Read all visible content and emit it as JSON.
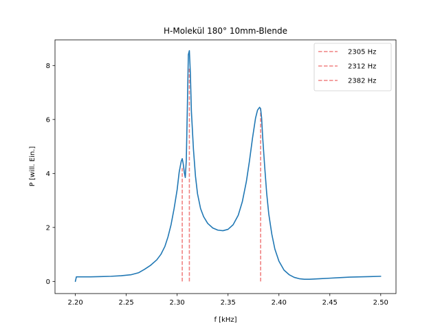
{
  "chart_data": {
    "type": "line",
    "title": "H-Molekül 180° 10mm-Blende",
    "xlabel": "f [kHz]",
    "ylabel": "P [will. Ein.]",
    "xlim": [
      2.18,
      2.515
    ],
    "ylim": [
      -0.45,
      8.95
    ],
    "xticks": [
      2.2,
      2.25,
      2.3,
      2.35,
      2.4,
      2.45,
      2.5
    ],
    "xtick_labels": [
      "2.20",
      "2.25",
      "2.30",
      "2.35",
      "2.40",
      "2.45",
      "2.50"
    ],
    "yticks": [
      0,
      2,
      4,
      6,
      8
    ],
    "ytick_labels": [
      "0",
      "2",
      "4",
      "6",
      "8"
    ],
    "grid": false,
    "legend_position": "top-right",
    "series": [
      {
        "color": "#1f77b4",
        "x": [
          2.2,
          2.201,
          2.205,
          2.215,
          2.225,
          2.235,
          2.245,
          2.255,
          2.262,
          2.268,
          2.274,
          2.28,
          2.284,
          2.288,
          2.291,
          2.294,
          2.297,
          2.3,
          2.302,
          2.304,
          2.305,
          2.306,
          2.307,
          2.308,
          2.309,
          2.31,
          2.311,
          2.312,
          2.313,
          2.314,
          2.316,
          2.318,
          2.32,
          2.323,
          2.326,
          2.33,
          2.335,
          2.34,
          2.345,
          2.35,
          2.355,
          2.36,
          2.364,
          2.368,
          2.371,
          2.374,
          2.377,
          2.379,
          2.381,
          2.382,
          2.383,
          2.384,
          2.386,
          2.388,
          2.39,
          2.393,
          2.396,
          2.4,
          2.405,
          2.41,
          2.415,
          2.42,
          2.425,
          2.43,
          2.435,
          2.44,
          2.45,
          2.46,
          2.47,
          2.48,
          2.49,
          2.5
        ],
        "y": [
          0.0,
          0.17,
          0.17,
          0.17,
          0.18,
          0.19,
          0.21,
          0.25,
          0.32,
          0.45,
          0.6,
          0.8,
          1.0,
          1.3,
          1.65,
          2.1,
          2.7,
          3.4,
          4.05,
          4.45,
          4.55,
          4.35,
          4.05,
          3.85,
          4.5,
          6.4,
          8.4,
          8.55,
          7.7,
          6.3,
          4.9,
          3.9,
          3.25,
          2.7,
          2.4,
          2.15,
          1.98,
          1.9,
          1.88,
          1.93,
          2.1,
          2.45,
          2.95,
          3.7,
          4.45,
          5.3,
          6.05,
          6.35,
          6.45,
          6.4,
          6.05,
          5.35,
          4.25,
          3.25,
          2.5,
          1.75,
          1.2,
          0.75,
          0.42,
          0.25,
          0.15,
          0.1,
          0.08,
          0.08,
          0.09,
          0.1,
          0.12,
          0.14,
          0.16,
          0.17,
          0.18,
          0.19
        ]
      }
    ],
    "vlines": [
      {
        "x": 2.305,
        "y_top": 4.2,
        "label": "2305 Hz",
        "color": "#f08080"
      },
      {
        "x": 2.312,
        "y_top": 7.9,
        "label": "2312 Hz",
        "color": "#f08080"
      },
      {
        "x": 2.382,
        "y_top": 6.4,
        "label": "2382 Hz",
        "color": "#f08080"
      }
    ]
  }
}
